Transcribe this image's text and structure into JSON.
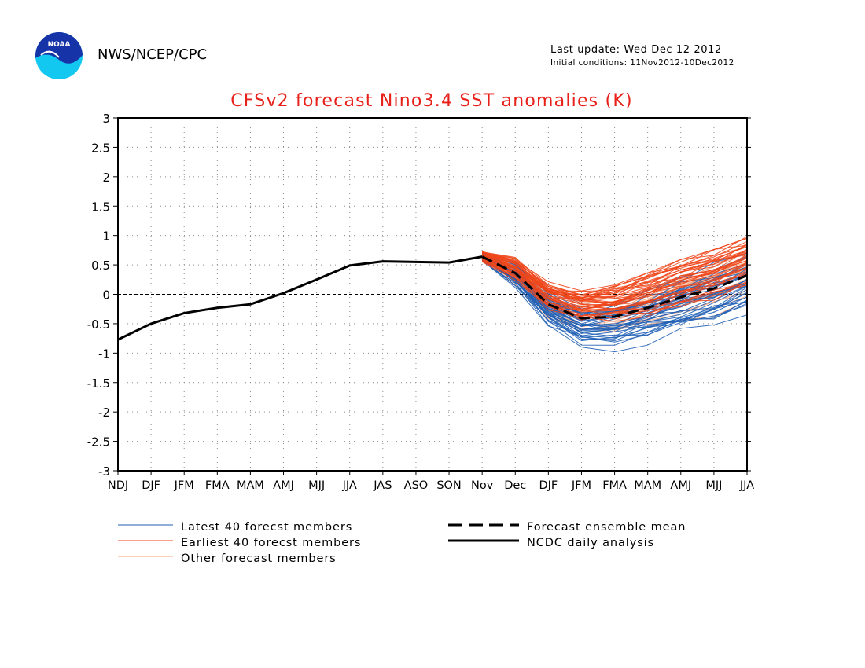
{
  "header": {
    "org": "NWS/NCEP/CPC",
    "last_update": "Last update: Wed Dec 12 2012",
    "initial_conditions": "Initial conditions: 11Nov2012-10Dec2012"
  },
  "logo": {
    "text": "NOAA",
    "icon": "noaa-logo-icon"
  },
  "colors": {
    "title": "#e8201a",
    "latest": "#1f5fb5",
    "earliest": "#f0461a",
    "other": "#f0a07a",
    "analysis": "#000000"
  },
  "legend": {
    "latest": "Latest 40 forecst members",
    "earliest": "Earliest 40 forecst members",
    "other": "Other forecast members",
    "mean": "Forecast ensemble mean",
    "analysis": "NCDC daily analysis"
  },
  "chart_data": {
    "type": "line",
    "title": "CFSv2 forecast Nino3.4 SST anomalies (K)",
    "categories": [
      "NDJ",
      "DJF",
      "JFM",
      "FMA",
      "MAM",
      "AMJ",
      "MJJ",
      "JJA",
      "JAS",
      "ASO",
      "SON",
      "Nov",
      "Dec",
      "DJF",
      "JFM",
      "FMA",
      "MAM",
      "AMJ",
      "MJJ",
      "JJA"
    ],
    "ylim": [
      -3,
      3
    ],
    "yticks": [
      "3",
      "2.5",
      "2",
      "1.5",
      "1",
      "0.5",
      "0",
      "-0.5",
      "-1",
      "-1.5",
      "-2",
      "-2.5",
      "-3"
    ],
    "grid": true,
    "series": [
      {
        "name": "NCDC daily analysis",
        "style": "solid",
        "values": [
          -0.77,
          -0.5,
          -0.32,
          -0.23,
          -0.17,
          0.02,
          0.25,
          0.49,
          0.56,
          0.55,
          0.54,
          0.64,
          null,
          null,
          null,
          null,
          null,
          null,
          null,
          null
        ]
      },
      {
        "name": "Forecast ensemble mean",
        "style": "dashed",
        "values": [
          null,
          null,
          null,
          null,
          null,
          null,
          null,
          null,
          null,
          null,
          null,
          0.64,
          0.36,
          -0.17,
          -0.41,
          -0.38,
          -0.23,
          -0.05,
          0.1,
          0.32
        ]
      }
    ],
    "member_groups": [
      {
        "name": "Latest 40 forecst members",
        "count": 40,
        "spread": [
          0.1,
          0.22,
          0.3,
          0.35,
          0.4,
          0.45,
          0.5,
          0.55
        ],
        "bias": -0.15
      },
      {
        "name": "Earliest 40 forecst members",
        "count": 40,
        "spread": [
          0.1,
          0.15,
          0.18,
          0.22,
          0.28,
          0.33,
          0.38,
          0.42
        ],
        "bias": 0.22
      },
      {
        "name": "Other forecast members",
        "count": 20,
        "spread": [
          0.1,
          0.18,
          0.25,
          0.3,
          0.35,
          0.4,
          0.45,
          0.5
        ],
        "bias": 0.02
      }
    ]
  }
}
